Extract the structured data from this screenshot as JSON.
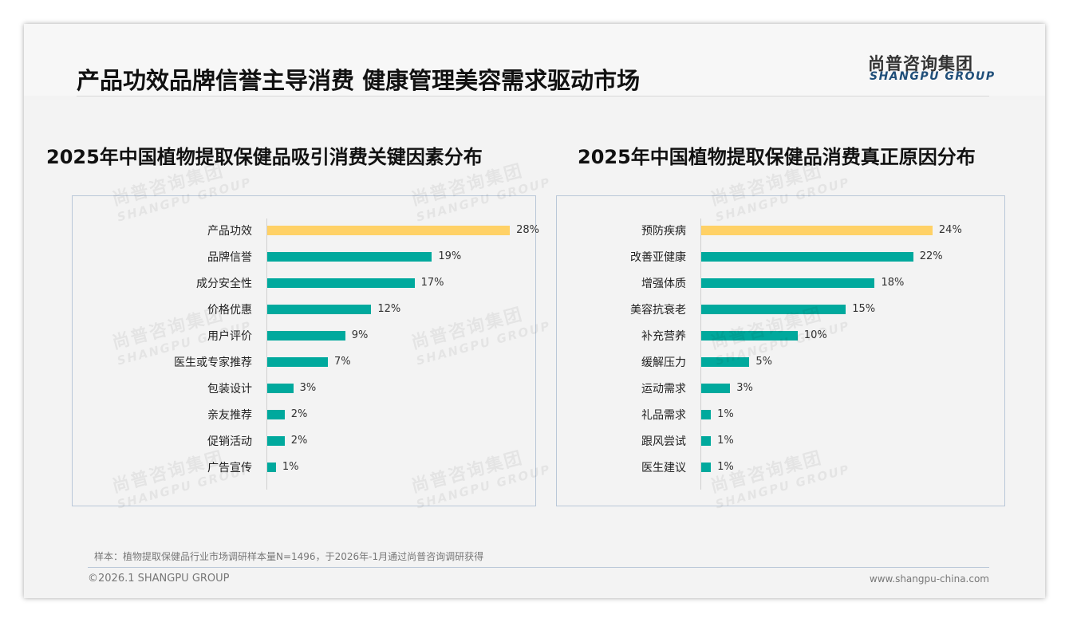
{
  "header": {
    "title": "产品功效品牌信誉主导消费 健康管理美容需求驱动市场",
    "logo_cn": "尚普咨询集团",
    "logo_en": "SHANGPU GROUP"
  },
  "watermark": {
    "cn": "尚普咨询集团",
    "en": "SHANGPU GROUP"
  },
  "chart_data": [
    {
      "type": "bar",
      "orientation": "horizontal",
      "title": "2025年中国植物提取保健品吸引消费关键因素分布",
      "categories": [
        "产品功效",
        "品牌信誉",
        "成分安全性",
        "价格优惠",
        "用户评价",
        "医生或专家推荐",
        "包装设计",
        "亲友推荐",
        "促销活动",
        "广告宣传"
      ],
      "values": [
        28,
        19,
        17,
        12,
        9,
        7,
        3,
        2,
        2,
        1
      ],
      "unit": "%",
      "highlight_color": "#ffd166",
      "color": "#00a99d",
      "xlim": [
        0,
        28
      ]
    },
    {
      "type": "bar",
      "orientation": "horizontal",
      "title": "2025年中国植物提取保健品消费真正原因分布",
      "categories": [
        "预防疾病",
        "改善亚健康",
        "增强体质",
        "美容抗衰老",
        "补充营养",
        "缓解压力",
        "运动需求",
        "礼品需求",
        "跟风尝试",
        "医生建议"
      ],
      "values": [
        24,
        22,
        18,
        15,
        10,
        5,
        3,
        1,
        1,
        1
      ],
      "unit": "%",
      "highlight_color": "#ffd166",
      "color": "#00a99d",
      "xlim": [
        0,
        24
      ]
    }
  ],
  "footer": {
    "note": "样本：植物提取保健品行业市场调研样本量N=1496，于2026年-1月通过尚普咨询调研获得",
    "copyright": "©2026.1 SHANGPU GROUP",
    "url": "www.shangpu-china.com"
  }
}
